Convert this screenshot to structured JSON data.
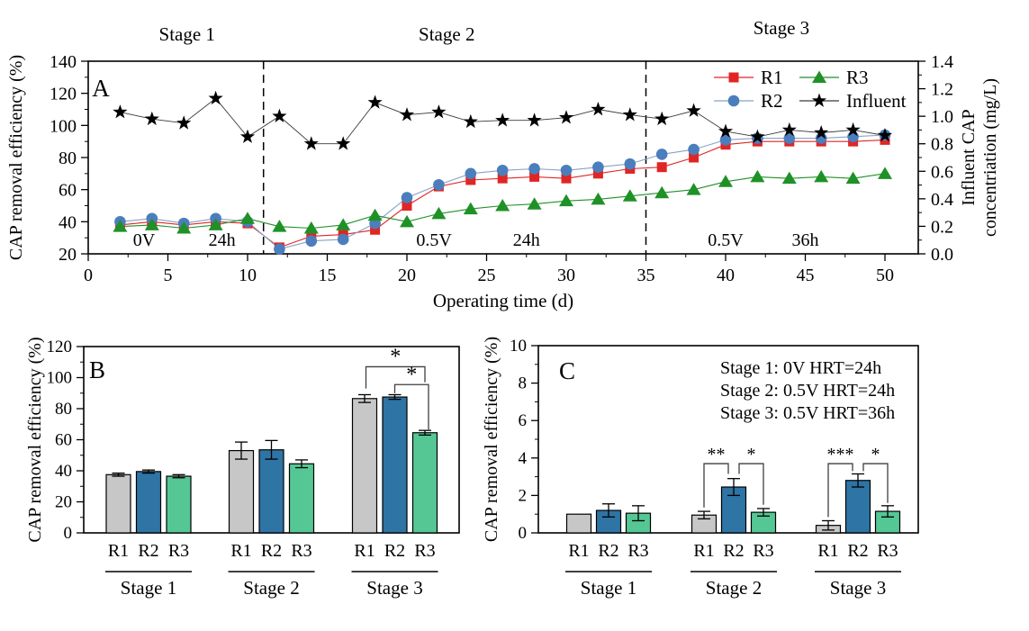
{
  "colors": {
    "r1_red": "#e02525",
    "r2_marker_blue": "#4a7ebd",
    "r2_line_blue": "#86a3c3",
    "r3_green": "#1f9127",
    "influent_black": "#000000",
    "influent_line": "#3a3a3a",
    "bar_r1_gray": "#c7c7c7",
    "bar_r2_blue": "#2e74a5",
    "bar_r3_green": "#55c795",
    "bar_edge": "#000000",
    "significance": "#3f3f3f",
    "axis": "#000000"
  },
  "chart_data": [
    {
      "type": "line",
      "panel_letter": "A",
      "xlabel": "Operating time (d)",
      "ylabel_left": "CAP removal efficiency (%)",
      "ylabel_right_line1": "Influent CAP",
      "ylabel_right_line2": "concentriation (mg/L)",
      "xlim": [
        0,
        52
      ],
      "ylim_left": [
        20,
        140
      ],
      "ylim_right": [
        0.0,
        1.4
      ],
      "xticks": [
        0,
        5,
        10,
        15,
        20,
        25,
        30,
        35,
        40,
        45,
        50
      ],
      "yticks_left": [
        20,
        40,
        60,
        80,
        100,
        120,
        140
      ],
      "yticks_right": [
        0.0,
        0.2,
        0.4,
        0.6,
        0.8,
        1.0,
        1.2,
        1.4
      ],
      "stage_dividers_x": [
        11,
        35
      ],
      "stage_labels": [
        {
          "text": "Stage 1",
          "day": 6.2
        },
        {
          "text": "Stage 2",
          "day": 22.5
        },
        {
          "text": "Stage 3",
          "day": 43.5
        }
      ],
      "annotations": [
        {
          "text": "0V",
          "day": 3.5
        },
        {
          "text": "24h",
          "day": 8.4
        },
        {
          "text": "0.5V",
          "day": 21.7
        },
        {
          "text": "24h",
          "day": 27.5
        },
        {
          "text": "0.5V",
          "day": 40.0
        },
        {
          "text": "36h",
          "day": 45.0
        }
      ],
      "legend_order": [
        "R1",
        "R3",
        "R2",
        "Influent"
      ],
      "x": [
        2,
        4,
        6,
        8,
        10,
        12,
        14,
        16,
        18,
        20,
        22,
        24,
        26,
        28,
        30,
        32,
        34,
        36,
        38,
        40,
        42,
        44,
        46,
        48,
        50
      ],
      "series": [
        {
          "name": "R1",
          "marker": "square",
          "axis": "left",
          "values": [
            38,
            40,
            38,
            40,
            39,
            24,
            31,
            32,
            35,
            50,
            62,
            66,
            67,
            68,
            67,
            70,
            73,
            74,
            80,
            88,
            90,
            90,
            90,
            90,
            91
          ]
        },
        {
          "name": "R2",
          "marker": "circle",
          "axis": "left",
          "values": [
            40,
            42,
            39,
            42,
            40,
            23,
            28,
            29,
            39,
            55,
            63,
            70,
            72,
            73,
            72,
            74,
            76,
            82,
            85,
            91,
            92,
            92,
            92,
            93,
            94
          ]
        },
        {
          "name": "R3",
          "marker": "triangle",
          "axis": "left",
          "values": [
            37,
            38,
            36,
            38,
            42,
            37,
            36,
            38,
            44,
            40,
            45,
            48,
            50,
            51,
            53,
            54,
            56,
            58,
            60,
            65,
            68,
            67,
            68,
            67,
            70
          ]
        },
        {
          "name": "Influent",
          "marker": "star",
          "axis": "right",
          "values": [
            1.03,
            0.98,
            0.95,
            1.13,
            0.85,
            1.0,
            0.8,
            0.8,
            1.1,
            1.01,
            1.03,
            0.96,
            0.97,
            0.97,
            0.99,
            1.05,
            1.01,
            0.98,
            1.04,
            0.89,
            0.85,
            0.9,
            0.88,
            0.9,
            0.86
          ]
        }
      ]
    },
    {
      "type": "bar",
      "panel_letter": "B",
      "ylabel": "CAP removal efficiency (%)",
      "ylim": [
        0,
        120
      ],
      "yticks": [
        0,
        20,
        40,
        60,
        80,
        100,
        120
      ],
      "groups": [
        "Stage 1",
        "Stage 2",
        "Stage 3"
      ],
      "bar_labels": [
        "R1",
        "R2",
        "R3"
      ],
      "values": [
        [
          37.5,
          39.5,
          36.5
        ],
        [
          53,
          53.5,
          44.5
        ],
        [
          86.5,
          87.5,
          64.5
        ]
      ],
      "errors": [
        [
          1,
          1,
          1
        ],
        [
          5.5,
          6,
          2.5
        ],
        [
          2.5,
          1.5,
          1.5
        ]
      ],
      "significance": [
        {
          "group": "Stage 3",
          "from": "R1",
          "to": "R3",
          "label": "*"
        },
        {
          "group": "Stage 3",
          "from": "R2",
          "to": "R3",
          "label": "*"
        }
      ]
    },
    {
      "type": "bar",
      "panel_letter": "C",
      "ylabel": "CAP removal efficiency (%)",
      "ylim": [
        0,
        10
      ],
      "yticks": [
        0,
        2,
        4,
        6,
        8,
        10
      ],
      "groups": [
        "Stage 1",
        "Stage 2",
        "Stage 3"
      ],
      "bar_labels": [
        "R1",
        "R2",
        "R3"
      ],
      "values": [
        [
          1.0,
          1.2,
          1.05
        ],
        [
          0.95,
          2.45,
          1.1
        ],
        [
          0.4,
          2.8,
          1.15
        ]
      ],
      "errors": [
        [
          0,
          0.35,
          0.4
        ],
        [
          0.2,
          0.45,
          0.2
        ],
        [
          0.25,
          0.35,
          0.3
        ]
      ],
      "annotation_lines": [
        "Stage 1: 0V HRT=24h",
        "Stage 2: 0.5V HRT=24h",
        "Stage 3: 0.5V HRT=36h"
      ],
      "significance": [
        {
          "group": "Stage 2",
          "from": "R1",
          "to": "R2",
          "label": "**"
        },
        {
          "group": "Stage 2",
          "from": "R2",
          "to": "R3",
          "label": "*"
        },
        {
          "group": "Stage 3",
          "from": "R1",
          "to": "R2",
          "label": "***"
        },
        {
          "group": "Stage 3",
          "from": "R2",
          "to": "R3",
          "label": "*"
        }
      ]
    }
  ]
}
